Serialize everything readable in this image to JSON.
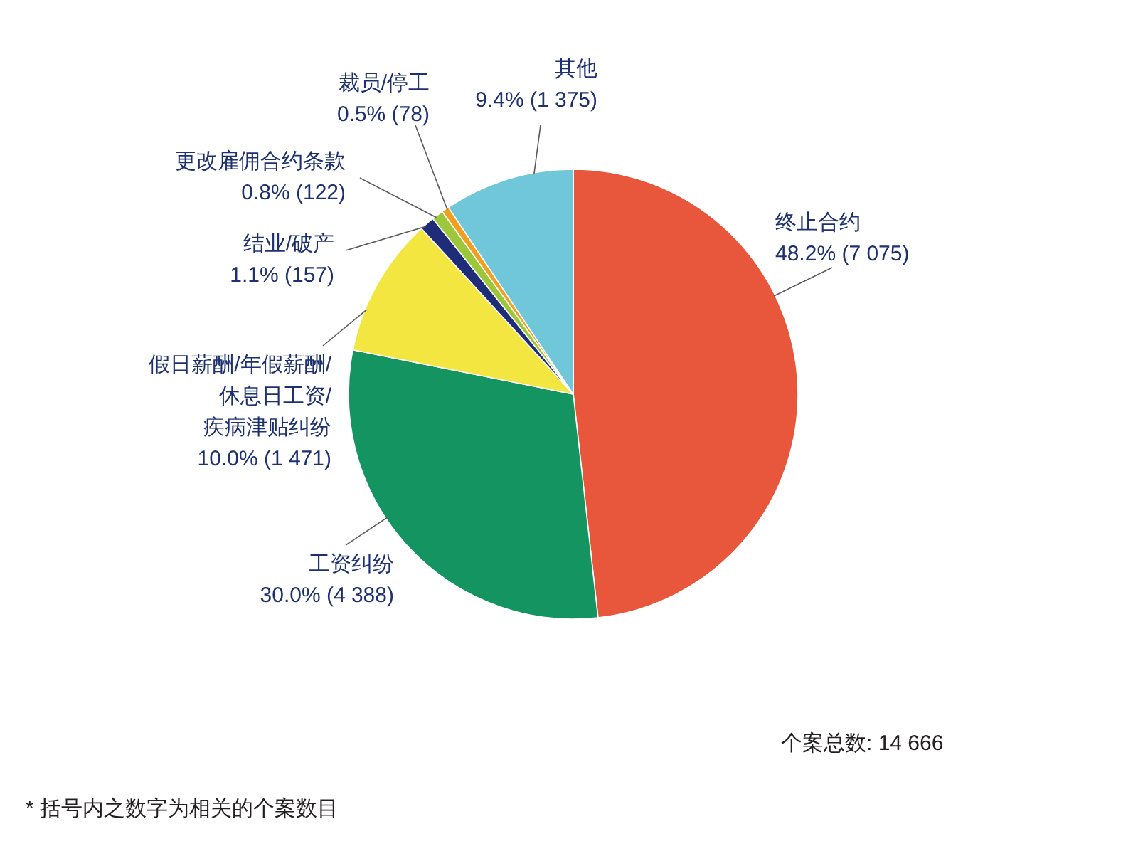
{
  "chart_data": {
    "type": "pie",
    "categories": [
      "终止合约",
      "工资纠纷",
      "假日薪酬/年假薪酬/休息日工资/疾病津贴纠纷",
      "结业/破产",
      "更改雇佣合约条款",
      "裁员/停工",
      "其他"
    ],
    "values": [
      7075,
      4388,
      1471,
      157,
      122,
      78,
      1375
    ],
    "colors": [
      "#e8573b",
      "#139461",
      "#f3e640",
      "#1f2d78",
      "#9dc73b",
      "#f0a01e",
      "#70c7da"
    ],
    "value_labels": [
      "48.2% (7 075)",
      "30.0% (4 388)",
      "10.0% (1 471)",
      "1.1% (157)",
      "0.8% (122)",
      "0.5% (78)",
      "9.4% (1 375)"
    ],
    "annotations": [
      "个案总数: 14 666",
      "* 括号内之数字为相关的个案数目"
    ]
  }
}
